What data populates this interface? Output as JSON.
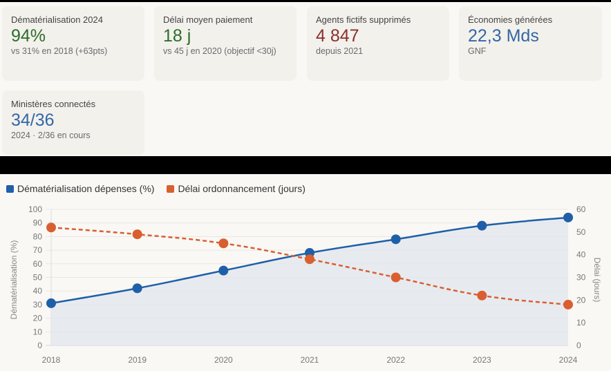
{
  "kpis": [
    {
      "label": "Dématérialisation 2024",
      "value": "94%",
      "sub": "vs 31% en 2018 (+63pts)",
      "color": "#2e6b2a"
    },
    {
      "label": "Délai moyen paiement",
      "value": "18 j",
      "sub": "vs 45 j en 2020 (objectif <30j)",
      "color": "#2e6b2a"
    },
    {
      "label": "Agents fictifs supprimés",
      "value": "4 847",
      "sub": "depuis 2021",
      "color": "#8b2f2a"
    },
    {
      "label": "Économies générées",
      "value": "22,3 Mds",
      "sub": "GNF",
      "color": "#3566a6"
    },
    {
      "label": "Ministères connectés",
      "value": "34/36",
      "sub": "2024 · 2/36 en cours",
      "color": "#3566a6"
    }
  ],
  "chart_data": {
    "type": "line",
    "title": "",
    "x": [
      "2018",
      "2019",
      "2020",
      "2021",
      "2022",
      "2023",
      "2024"
    ],
    "series": [
      {
        "name": "Dématérialisation dépenses (%)",
        "axis": "left",
        "values": [
          31,
          42,
          55,
          68,
          78,
          88,
          94
        ],
        "color": "#1f5fa8",
        "style": "solid",
        "fill": true
      },
      {
        "name": "Délai ordonnancement (jours)",
        "axis": "right",
        "values": [
          52,
          49,
          45,
          38,
          30,
          22,
          18
        ],
        "color": "#d95f30",
        "style": "dashed",
        "fill": false
      }
    ],
    "ylabel": "Dématérialisation (%)",
    "y2label": "Délai (jours)",
    "ylim": [
      0,
      100
    ],
    "y2lim": [
      0,
      60
    ],
    "yticks": [
      0,
      10,
      20,
      30,
      40,
      50,
      60,
      70,
      80,
      90,
      100
    ],
    "y2ticks": [
      0,
      10,
      20,
      30,
      40,
      50,
      60
    ],
    "grid": true,
    "legend": "top-left"
  }
}
